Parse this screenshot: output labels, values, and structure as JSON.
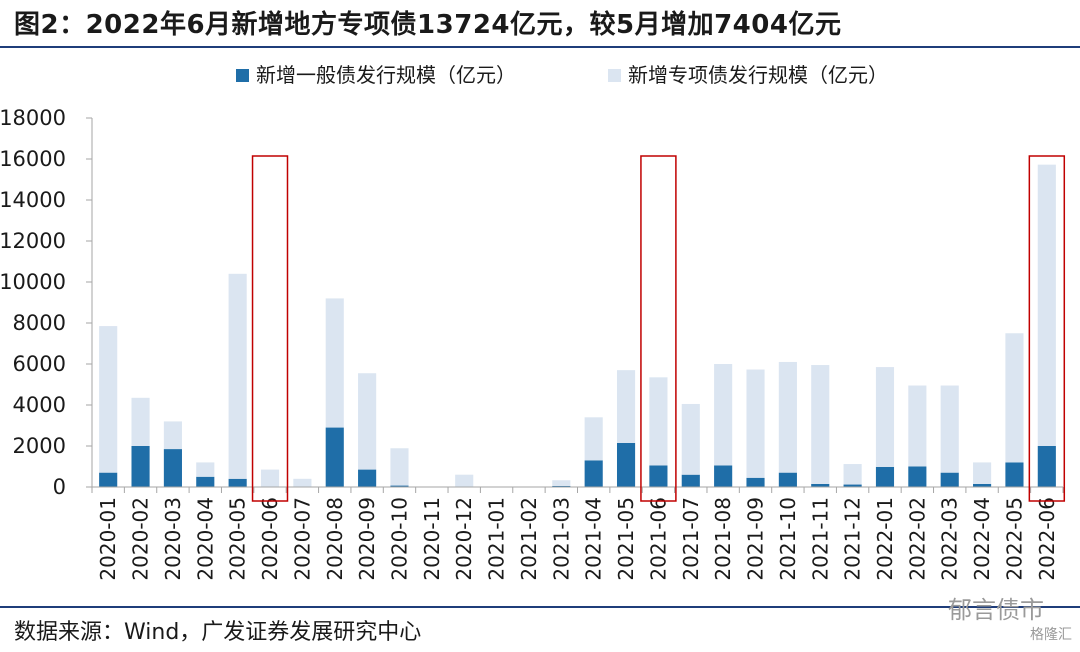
{
  "title": "图2：2022年6月新增地方专项债13724亿元，较5月增加7404亿元",
  "source": "数据来源：Wind，广发证券发展研究中心",
  "watermark": "郁言债市",
  "watermark2": "格隆汇",
  "colors": {
    "general": "#1f6ea8",
    "special": "#dbe5f1",
    "highlight": "#c00000",
    "axis": "#a6a6a6",
    "rule": "#1f3d7a"
  },
  "chart_data": {
    "type": "bar",
    "stacked": true,
    "ylim": [
      0,
      18000
    ],
    "yticks": [
      0,
      2000,
      4000,
      6000,
      8000,
      10000,
      12000,
      14000,
      16000,
      18000
    ],
    "legend_position": "top",
    "categories": [
      "2020-01",
      "2020-02",
      "2020-03",
      "2020-04",
      "2020-05",
      "2020-06",
      "2020-07",
      "2020-08",
      "2020-09",
      "2020-10",
      "2020-11",
      "2020-12",
      "2021-01",
      "2021-02",
      "2021-03",
      "2021-04",
      "2021-05",
      "2021-06",
      "2021-07",
      "2021-08",
      "2021-09",
      "2021-10",
      "2021-11",
      "2021-12",
      "2022-01",
      "2022-02",
      "2022-03",
      "2022-04",
      "2022-05",
      "2022-06"
    ],
    "series": [
      {
        "name": "新增一般债发行规模（亿元）",
        "values": [
          700,
          2000,
          1850,
          500,
          400,
          0,
          0,
          2900,
          850,
          70,
          0,
          0,
          0,
          0,
          50,
          1300,
          2150,
          1050,
          600,
          1050,
          450,
          700,
          150,
          120,
          980,
          1000,
          700,
          150,
          1200,
          2000
        ]
      },
      {
        "name": "新增专项债发行规模（亿元）",
        "values": [
          7150,
          2350,
          1350,
          700,
          10000,
          850,
          400,
          6300,
          4700,
          1820,
          0,
          600,
          0,
          0,
          280,
          2100,
          3550,
          4300,
          3450,
          4950,
          5280,
          5400,
          5800,
          1000,
          4870,
          3950,
          4250,
          1050,
          6300,
          13724
        ]
      }
    ],
    "highlighted": [
      "2020-06",
      "2021-06",
      "2022-06"
    ]
  }
}
